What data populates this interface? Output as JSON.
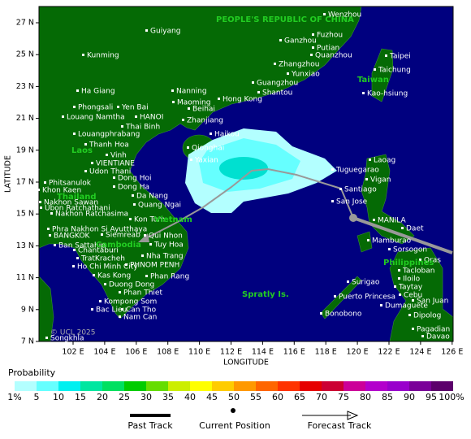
{
  "map": {
    "country_label": "PEOPLE'S REPUBLIC OF CHINA",
    "region_labels": [
      "Taiwan",
      "Laos",
      "Thailand",
      "Vietnam",
      "Cambodia",
      "Philippines",
      "Spratly Is."
    ],
    "places": [
      "Wenzhou",
      "Fuzhou",
      "Guiyang",
      "Putian",
      "Ganzhou",
      "Quanzhou",
      "Taipei",
      "Kunming",
      "Zhangzhou",
      "Taichung",
      "Yunxiao",
      "Guangzhou",
      "Ha Giang",
      "Nanning",
      "Shantou",
      "Hong Kong",
      "Kao-hsiung",
      "Maoming",
      "Phongsali",
      "Yen Bai",
      "Beihai",
      "Louang Namtha",
      "HANOI",
      "Zhanjiang",
      "Thai Binh",
      "Louangphrabang",
      "Haikou",
      "Thanh Hoa",
      "Qionghai",
      "Vinh",
      "Yaxian",
      "VIENTIANE",
      "Udon Thani",
      "Phitsanulok",
      "Dong Hoi",
      "Khon Kaen",
      "Dong Ha",
      "Da Nang",
      "Nakhon Sawan",
      "Quang Ngai",
      "Ubon Ratchathani",
      "Nakhon Ratchasima",
      "Kon Tum",
      "Phra Nakhon Si Ayutthaya",
      "BANGKOK",
      "Siemreab",
      "Qui Nhon",
      "Ban Sattahip",
      "Tuy Hoa",
      "Chantaburi",
      "Nha Trang",
      "TratKracheh",
      "Ho Chi Minh City",
      "PHNOM PENH",
      "Kas Kong",
      "Phan Rang",
      "Duong Dong",
      "Phan Thiet",
      "Kompong Som",
      "Bac Lieu",
      "Can Tho",
      "Nam Can",
      "Songkhla",
      "Laoag",
      "Tuguegarao",
      "Vigan",
      "Santiago",
      "San Jose",
      "MANILA",
      "Daet",
      "Mamburao",
      "Sorsogon",
      "Oras",
      "Tacloban",
      "Iloilo",
      "Taytay",
      "Cebu",
      "San Juan",
      "Surigao",
      "Puerto Princesa",
      "Dumaguete",
      "Bonobono",
      "Dipolog",
      "Pagadian",
      "Davao"
    ],
    "copyright": "© UCL 2025",
    "y_label": "LATITUDE",
    "x_label": "LONGITUDE",
    "lat_ticks": [
      "27 N",
      "25 N",
      "23 N",
      "21 N",
      "19 N",
      "17 N",
      "15 N",
      "13 N",
      "11 N",
      "9 N",
      "7 N"
    ],
    "lon_ticks": [
      "102 E",
      "104 E",
      "106 E",
      "108 E",
      "110 E",
      "112 E",
      "114 E",
      "116 E",
      "118 E",
      "120 E",
      "122 E",
      "124 E",
      "126 E"
    ],
    "legend": {
      "title": "Probability",
      "colors": [
        "#b3ffff",
        "#66ffff",
        "#00f0f0",
        "#00e6a0",
        "#00e060",
        "#00cc00",
        "#66dd00",
        "#ccee00",
        "#ffff00",
        "#ffcc00",
        "#ff9900",
        "#ff6600",
        "#ff3300",
        "#e60000",
        "#cc0033",
        "#cc0099",
        "#b300cc",
        "#9900cc",
        "#7a0099",
        "#5c006b"
      ],
      "labels": [
        "1%",
        "5",
        "10",
        "15",
        "20",
        "25",
        "30",
        "35",
        "40",
        "45",
        "50",
        "55",
        "60",
        "65",
        "70",
        "75",
        "80",
        "85",
        "90",
        "95",
        "100%"
      ],
      "past_track": "Past Track",
      "current_position": "Current Position",
      "forecast_track": "Forecast Track"
    }
  }
}
